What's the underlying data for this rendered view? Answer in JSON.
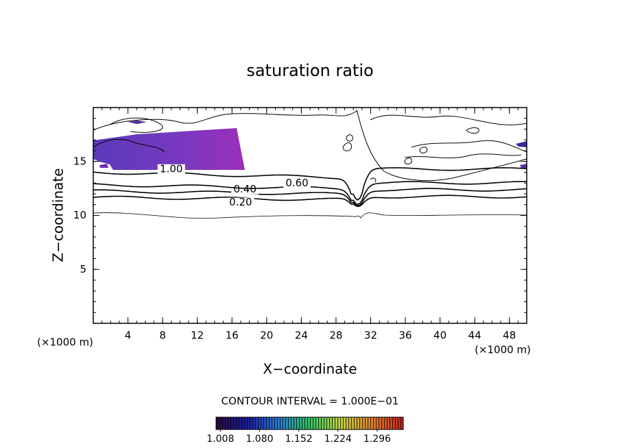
{
  "chart_data": {
    "type": "contour",
    "title": "saturation ratio",
    "xlabel": "X−coordinate",
    "ylabel": "Z−coordinate",
    "x_unit_label": "(×1000 m)",
    "y_unit_label": "(×1000 m)",
    "annotation": "CONTOUR INTERVAL = 1.000E−01",
    "xlim": [
      0,
      50
    ],
    "ylim": [
      0,
      20
    ],
    "xticks": [
      4,
      8,
      12,
      16,
      20,
      24,
      28,
      32,
      36,
      40,
      44,
      48
    ],
    "yticks": [
      5,
      10,
      15
    ],
    "contour_levels": [
      {
        "value": 0.2,
        "label": "0.20"
      },
      {
        "value": 0.4,
        "label": "0.40"
      },
      {
        "value": 0.6,
        "label": "0.60"
      },
      {
        "value": 1,
        "label": "1.00"
      }
    ],
    "colorbar": {
      "lim": [
        1.0,
        1.344
      ],
      "ticks": [
        {
          "value": 1.008,
          "label": "1.008"
        },
        {
          "value": 1.08,
          "label": "1.080"
        },
        {
          "value": 1.152,
          "label": "1.152"
        },
        {
          "value": 1.224,
          "label": "1.224"
        },
        {
          "value": 1.296,
          "label": "1.296"
        }
      ],
      "colors": [
        "#2a0a40",
        "#1a1aa0",
        "#2a7ad0",
        "#30c060",
        "#c0d040",
        "#e08030",
        "#c02020"
      ]
    }
  }
}
